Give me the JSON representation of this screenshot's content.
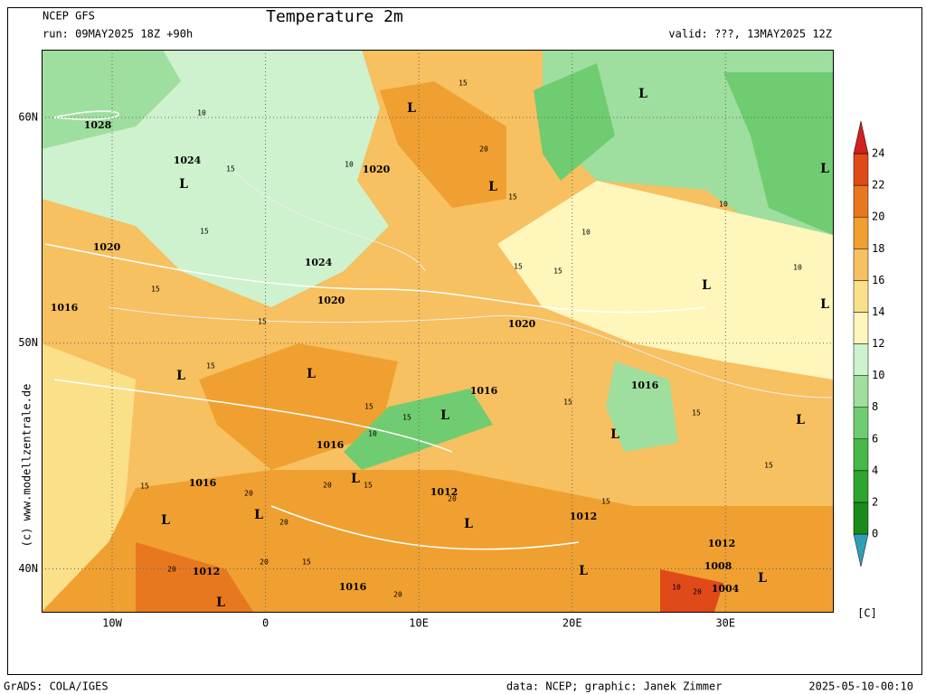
{
  "header": {
    "model": "NCEP GFS",
    "run": "run: 09MAY2025 18Z +90h",
    "title": "Temperature 2m",
    "valid": "valid: ???, 13MAY2025 12Z"
  },
  "map": {
    "xlim": [
      -14.6,
      37
    ],
    "ylim": [
      38.1,
      63
    ],
    "xticks": [
      {
        "value": -10,
        "label": "10W"
      },
      0,
      {
        "value": 10,
        "label": "10E"
      },
      {
        "value": 20,
        "label": "20E"
      },
      {
        "value": 30,
        "label": "30E"
      }
    ],
    "yticks": [
      {
        "value": 40,
        "label": "40N"
      },
      {
        "value": 50,
        "label": "50N"
      },
      {
        "value": 60,
        "label": "60N"
      }
    ],
    "pressure_labels": [
      "1028",
      "1024",
      "L",
      "1020",
      "1016",
      "1024",
      "1020",
      "1020",
      "L",
      "L",
      "L",
      "L",
      "1020",
      "L",
      "L",
      "L",
      "L",
      "1016",
      "L",
      "1016",
      "L",
      "L",
      "1016",
      "L",
      "1016",
      "L",
      "L",
      "1012",
      "L",
      "1012",
      "1012",
      "1008",
      "L",
      "1004",
      "L",
      "1012",
      "1016",
      "L"
    ],
    "isotherm_labels": [
      "10",
      "15",
      "10",
      "15",
      "15",
      "15",
      "20",
      "15",
      "15",
      "10",
      "15",
      "10",
      "15",
      "10",
      "15",
      "15",
      "15",
      "15",
      "15",
      "20",
      "20",
      "20",
      "20",
      "20",
      "15",
      "20",
      "20",
      "10",
      "15",
      "10",
      "15",
      "15",
      "15",
      "20"
    ]
  },
  "colorbar": {
    "levels": [
      0,
      2,
      4,
      6,
      8,
      10,
      12,
      14,
      16,
      18,
      20,
      22,
      24
    ],
    "colors": [
      "#2f9fb4",
      "#1a8a1a",
      "#2ea52e",
      "#48b848",
      "#70cc70",
      "#9ede9e",
      "#cdf2cd",
      "#fff6bc",
      "#fbe08a",
      "#f7c060",
      "#f0a030",
      "#e87820",
      "#e04a18",
      "#d02020"
    ],
    "unit": "[C]"
  },
  "watermark": "(c) www.modellzentrale.de",
  "footer": {
    "left": "GrADS: COLA/IGES",
    "middle": "data: NCEP; graphic: Janek Zimmer",
    "right": "2025-05-10-00:10"
  }
}
